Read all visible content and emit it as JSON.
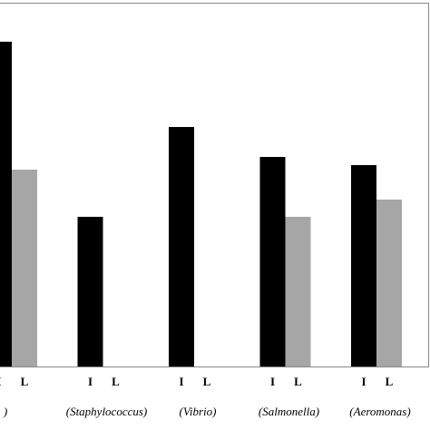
{
  "chart_data": {
    "type": "bar",
    "categories": [
      ")",
      "(Staphylococcus)",
      "(Vibrio)",
      "(Salmonella)",
      "(Aeromonas)"
    ],
    "series": [
      {
        "name": "I",
        "color": "#000000",
        "values": [
          358,
          165,
          264,
          231,
          222
        ]
      },
      {
        "name": "L",
        "color": "#a6a6a6",
        "values": [
          217,
          null,
          null,
          165,
          184
        ]
      }
    ],
    "ylim": [
      0,
      400
    ]
  }
}
